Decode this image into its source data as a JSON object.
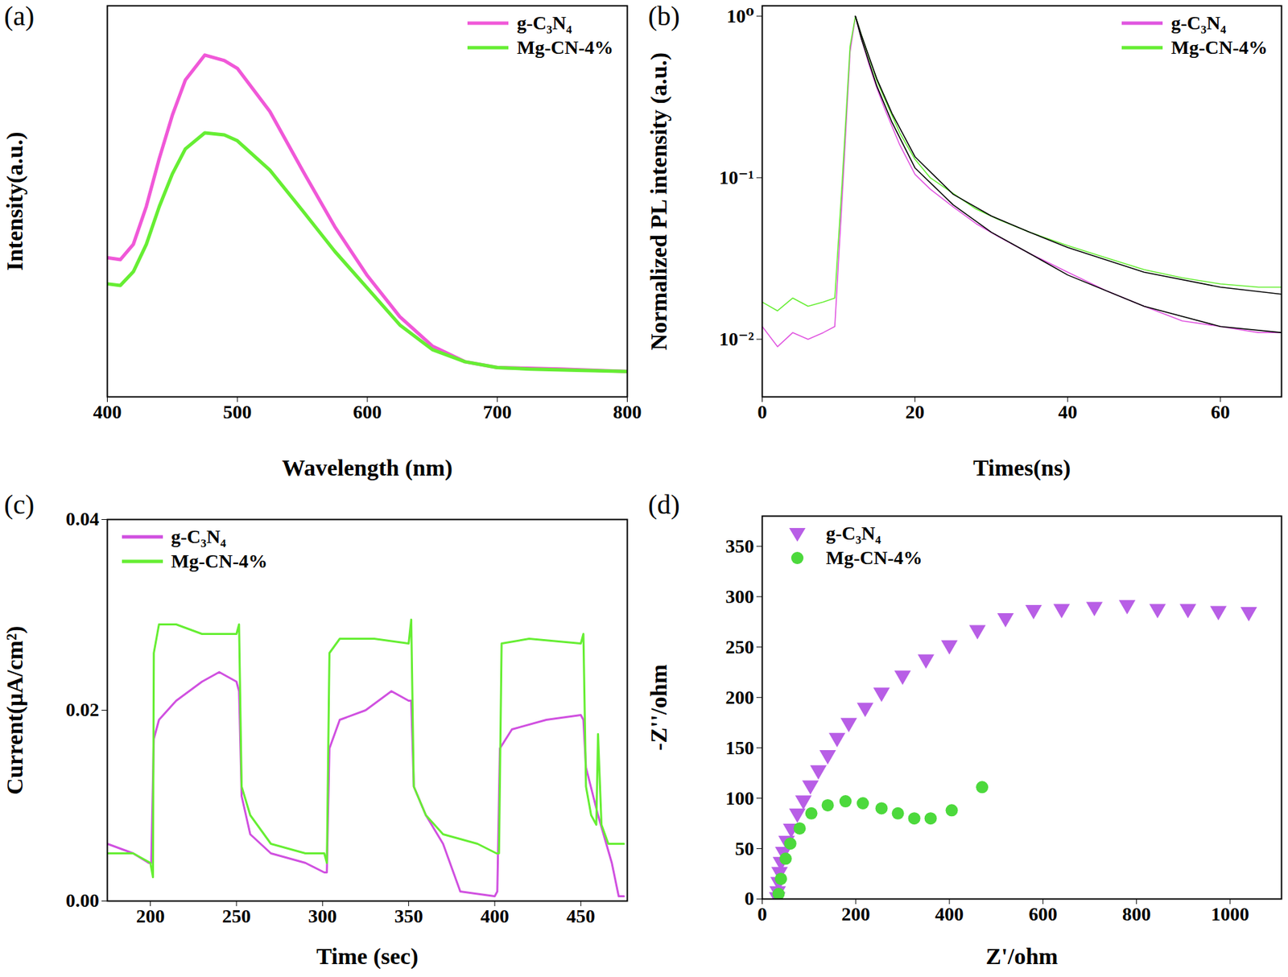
{
  "chart_data": [
    {
      "type": "line",
      "title": "(a)",
      "xlabel": "Wavelength (nm)",
      "ylabel": "Intensity(a.u.)",
      "xlim": [
        400,
        800
      ],
      "xticks": [
        400,
        500,
        600,
        700,
        800
      ],
      "ylim": [
        0,
        100
      ],
      "yticks": [],
      "tick_labels": "x",
      "legend": "top-right",
      "series": [
        {
          "name": "g-C₃N₄",
          "color": "#f058d8",
          "x": [
            400,
            410,
            420,
            430,
            440,
            450,
            460,
            475,
            490,
            500,
            525,
            550,
            575,
            600,
            625,
            650,
            675,
            700,
            725,
            750,
            800
          ],
          "values": [
            35.6,
            35.1,
            39,
            48.7,
            61,
            72,
            81,
            87.4,
            86,
            84,
            73,
            58,
            43.5,
            31,
            20.5,
            13,
            9,
            7.5,
            7.3,
            7.1,
            6.5
          ]
        },
        {
          "name": "Mg-CN-4%",
          "color": "#66ee33",
          "x": [
            400,
            410,
            420,
            430,
            440,
            450,
            460,
            475,
            490,
            500,
            525,
            550,
            575,
            600,
            625,
            650,
            675,
            700,
            725,
            750,
            800
          ],
          "values": [
            28.9,
            28.5,
            32,
            39,
            48.7,
            57,
            63.4,
            67.5,
            67,
            65.5,
            58,
            47.7,
            37.2,
            27.8,
            18.4,
            12.1,
            9,
            7.5,
            7.1,
            6.9,
            6.5
          ]
        }
      ]
    },
    {
      "type": "line",
      "title": "(b)",
      "xlabel": "Times(ns)",
      "ylabel": "Normalized PL intensity (a.u.)",
      "log": "y",
      "xlim": [
        0,
        68
      ],
      "xticks": [
        0,
        20,
        40,
        60
      ],
      "ylim": [
        0.0044,
        1.16
      ],
      "yticks": [
        {
          "value": 0.01,
          "label": "10⁻²"
        },
        {
          "value": 0.1,
          "label": "10⁻¹"
        },
        {
          "value": 1,
          "label": "10⁰"
        }
      ],
      "legend": "top-right",
      "series": [
        {
          "name": "g-C₃N₄",
          "color": "#e055e0",
          "x": [
            0,
            2,
            4,
            6,
            8,
            9.5,
            10.5,
            11.5,
            12.2,
            13,
            14,
            15,
            16,
            18,
            20,
            22,
            25,
            28,
            31,
            35,
            40,
            45,
            50,
            55,
            60,
            65,
            68
          ],
          "values": [
            0.012,
            0.009,
            0.011,
            0.01,
            0.011,
            0.012,
            0.08,
            0.6,
            1,
            0.72,
            0.5,
            0.36,
            0.27,
            0.16,
            0.105,
            0.085,
            0.066,
            0.052,
            0.043,
            0.034,
            0.026,
            0.02,
            0.016,
            0.013,
            0.012,
            0.011,
            0.011
          ]
        },
        {
          "name": "Mg-CN-4%",
          "color": "#66ee33",
          "x": [
            0,
            2,
            4,
            6,
            8,
            9.5,
            10.5,
            11.5,
            12.2,
            13,
            14,
            15,
            16,
            18,
            20,
            22,
            25,
            28,
            31,
            35,
            40,
            45,
            50,
            55,
            60,
            65,
            68
          ],
          "values": [
            0.017,
            0.015,
            0.018,
            0.016,
            0.017,
            0.018,
            0.1,
            0.65,
            1,
            0.76,
            0.55,
            0.4,
            0.31,
            0.19,
            0.13,
            0.1,
            0.08,
            0.064,
            0.055,
            0.046,
            0.038,
            0.032,
            0.027,
            0.024,
            0.022,
            0.021,
            0.021
          ]
        },
        {
          "color": "#000000",
          "x": [
            12.2,
            13,
            15,
            17,
            20,
            25,
            30,
            35,
            40,
            50,
            60,
            68
          ],
          "values": [
            1,
            0.76,
            0.41,
            0.25,
            0.135,
            0.079,
            0.058,
            0.046,
            0.037,
            0.026,
            0.021,
            0.019
          ]
        },
        {
          "color": "#000000",
          "x": [
            12.2,
            13,
            15,
            17,
            20,
            25,
            30,
            35,
            40,
            50,
            60,
            68
          ],
          "values": [
            1,
            0.72,
            0.37,
            0.22,
            0.115,
            0.068,
            0.046,
            0.034,
            0.025,
            0.016,
            0.012,
            0.011
          ]
        }
      ]
    },
    {
      "type": "line",
      "title": "(c)",
      "xlabel": "Time (sec)",
      "ylabel": "Current(μA/cm²)",
      "xlim": [
        175,
        477
      ],
      "xticks": [
        200,
        250,
        300,
        350,
        400,
        450
      ],
      "ylim": [
        0,
        0.04
      ],
      "yticks": [
        {
          "value": 0,
          "label": "0.00"
        },
        0.02,
        0.04
      ],
      "legend": "top-left",
      "series": [
        {
          "name": "g-C₃N₄",
          "color": "#d050e0",
          "x": [
            175,
            190,
            199,
            200.5,
            202,
            205,
            215,
            230,
            240,
            250,
            251.5,
            253,
            258,
            270,
            290,
            301,
            302.5,
            304,
            310,
            325,
            340,
            350,
            351.5,
            353,
            360,
            370,
            380,
            400,
            401.5,
            403,
            410,
            430,
            450,
            451.5,
            453,
            460,
            468,
            472,
            475
          ],
          "values": [
            0.006,
            0.005,
            0.004,
            0.004,
            0.017,
            0.019,
            0.021,
            0.023,
            0.024,
            0.023,
            0.022,
            0.011,
            0.007,
            0.005,
            0.004,
            0.003,
            0.003,
            0.016,
            0.019,
            0.02,
            0.022,
            0.021,
            0.021,
            0.012,
            0.009,
            0.006,
            0.001,
            0.0005,
            0.001,
            0.016,
            0.018,
            0.019,
            0.0195,
            0.019,
            0.014,
            0.009,
            0.004,
            0.0005,
            0.0005
          ]
        },
        {
          "name": "Mg-CN-4%",
          "color": "#66ee33",
          "x": [
            175,
            190,
            200,
            201.5,
            202,
            205,
            215,
            230,
            250,
            251.5,
            253,
            258,
            270,
            290,
            301,
            302.5,
            304,
            310,
            330,
            350,
            351.5,
            353,
            360,
            370,
            390,
            401,
            402.5,
            404,
            420,
            450,
            451.5,
            453,
            456,
            459,
            460,
            462,
            466,
            475
          ],
          "values": [
            0.005,
            0.005,
            0.004,
            0.0025,
            0.026,
            0.029,
            0.029,
            0.028,
            0.028,
            0.029,
            0.012,
            0.009,
            0.006,
            0.005,
            0.005,
            0.004,
            0.026,
            0.0275,
            0.0275,
            0.027,
            0.0295,
            0.012,
            0.009,
            0.007,
            0.006,
            0.005,
            0.005,
            0.027,
            0.0275,
            0.027,
            0.028,
            0.012,
            0.009,
            0.008,
            0.0175,
            0.008,
            0.006,
            0.006
          ]
        }
      ]
    },
    {
      "type": "scatter",
      "title": "(d)",
      "xlabel": "Z'/ohm",
      "ylabel": "-Z''/ohm",
      "xlim": [
        0,
        1110
      ],
      "xticks": [
        0,
        200,
        400,
        600,
        800,
        1000
      ],
      "ylim": [
        0,
        380
      ],
      "yticks": [
        0,
        50,
        100,
        150,
        200,
        250,
        300,
        350
      ],
      "legend": "top-left",
      "series": [
        {
          "name": "g-C₃N₄",
          "color": "#b85ee6",
          "marker": "triangle-down",
          "x": [
            32,
            33,
            35,
            37,
            40,
            45,
            52,
            62,
            75,
            88,
            103,
            120,
            140,
            160,
            185,
            220,
            255,
            300,
            350,
            400,
            460,
            520,
            580,
            640,
            710,
            780,
            845,
            910,
            975,
            1040
          ],
          "values": [
            2,
            8,
            17,
            27,
            37,
            47,
            58,
            70,
            85,
            98,
            113,
            128,
            143,
            160,
            175,
            190,
            205,
            222,
            238,
            252,
            267,
            279,
            287,
            288,
            290,
            292,
            288,
            288,
            286,
            285
          ]
        },
        {
          "name": "Mg-CN-4%",
          "color": "#4cd93c",
          "marker": "circle",
          "x": [
            35,
            40,
            50,
            60,
            80,
            105,
            140,
            178,
            215,
            255,
            290,
            325,
            360,
            405,
            470
          ],
          "values": [
            5,
            20,
            40,
            55,
            70,
            85,
            93,
            97,
            95,
            90,
            85,
            80,
            80,
            88,
            111
          ]
        }
      ]
    }
  ]
}
